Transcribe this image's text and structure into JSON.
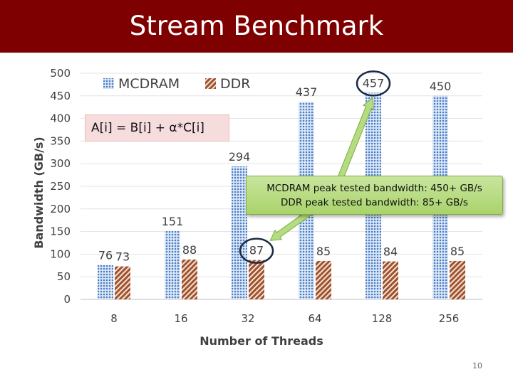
{
  "slide": {
    "title": "Stream Benchmark",
    "formula": "A[i] = B[i] + α*C[i]",
    "callout_line1": "MCDRAM peak tested bandwidth: 450+ GB/s",
    "callout_line2": "DDR peak tested bandwidth: 85+ GB/s",
    "page_number": "10"
  },
  "colors": {
    "title_bar": "#7f0000",
    "mcdram": "#4a7fc9",
    "ddr": "#a0522d",
    "callout": "#b5dc82",
    "highlight_ring": "#1b2a44"
  },
  "highlights": [
    {
      "series": "MCDRAM",
      "category": "128"
    },
    {
      "series": "DDR",
      "category": "32"
    }
  ],
  "chart_data": {
    "type": "bar",
    "categories": [
      "8",
      "16",
      "32",
      "64",
      "128",
      "256"
    ],
    "series": [
      {
        "name": "MCDRAM",
        "values": [
          76,
          151,
          294,
          437,
          457,
          450
        ],
        "pattern": "dots"
      },
      {
        "name": "DDR",
        "values": [
          73,
          88,
          87,
          85,
          84,
          85
        ],
        "pattern": "diagonal-stripes"
      }
    ],
    "xlabel": "Number of Threads",
    "ylabel": "Bandwidth (GB/s)",
    "ylim": [
      0,
      500
    ],
    "yticks": [
      0,
      50,
      100,
      150,
      200,
      250,
      300,
      350,
      400,
      450,
      500
    ],
    "grid": true,
    "legend": "top-left",
    "data_labels": true
  }
}
